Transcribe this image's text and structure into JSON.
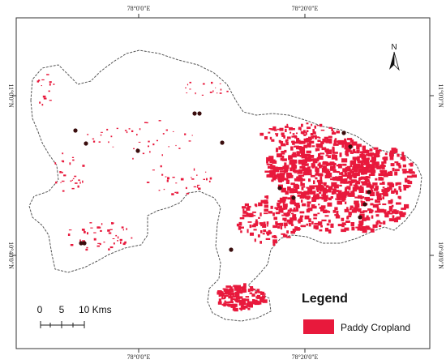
{
  "graticule": {
    "top_labels": [
      "78°0'0\"E",
      "78°20'0\"E"
    ],
    "bottom_labels": [
      "78°0'0\"E",
      "78°20'0\"E"
    ],
    "left_labels": [
      "11°0'0\"N",
      "10°40'0\"N"
    ],
    "right_labels": [
      "11°0'0\"N",
      "10°40'0\"N"
    ]
  },
  "north_arrow": {
    "label": "N",
    "icon": "north-arrow-icon"
  },
  "scale_bar": {
    "labels": [
      "0",
      "5",
      "10 Kms"
    ]
  },
  "legend": {
    "title": "Legend",
    "items": [
      {
        "label": "Paddy Cropland",
        "color": "#e8193c"
      }
    ]
  },
  "colors": {
    "cropland": "#e8193c",
    "boundary": "#555555",
    "settlement": "#3a0d0d"
  }
}
